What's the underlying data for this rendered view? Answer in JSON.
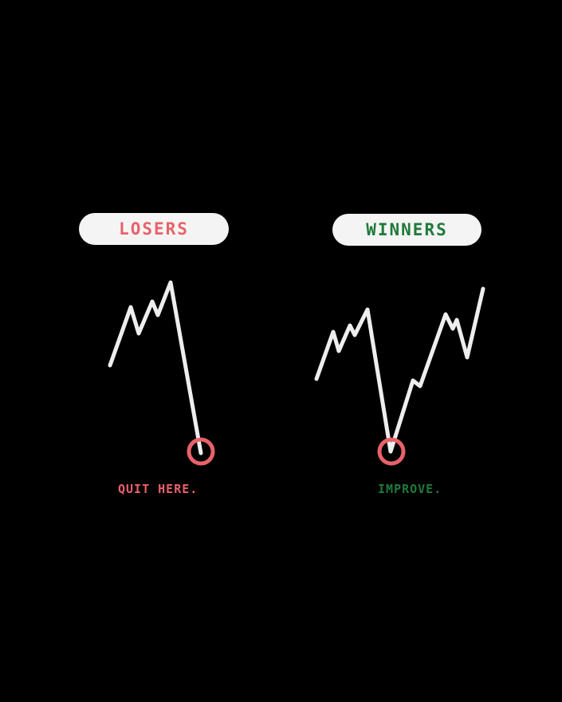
{
  "colors": {
    "background": "#000000",
    "pill": "#f4f4f4",
    "line": "#eeeeee",
    "losers": "#e8626a",
    "winners": "#1f7a3a"
  },
  "losers": {
    "title": "LOSERS",
    "caption": "QUIT HERE."
  },
  "winners": {
    "title": "WINNERS",
    "caption": "IMPROVE."
  }
}
